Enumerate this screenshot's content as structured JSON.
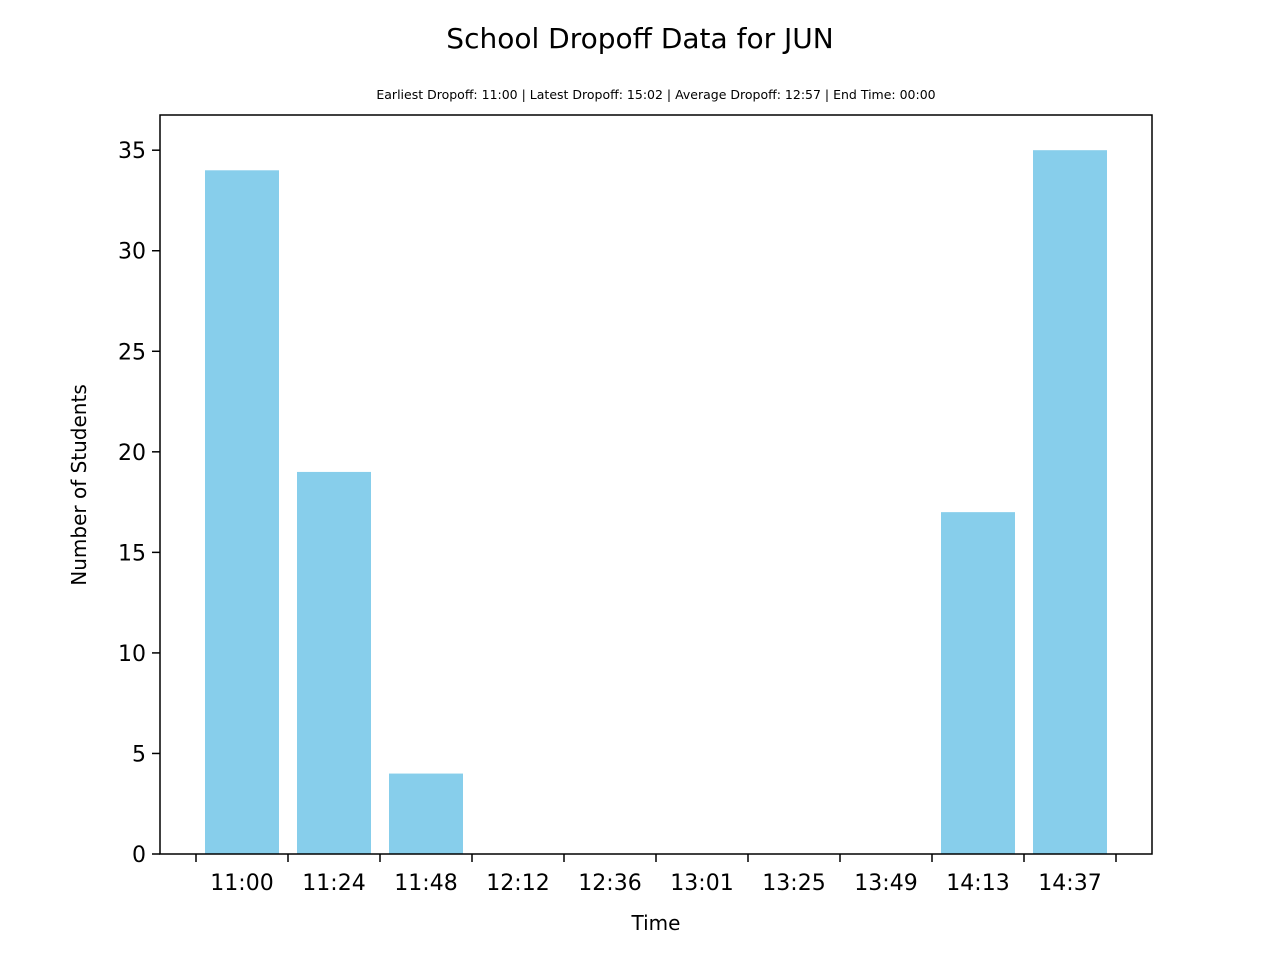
{
  "chart_data": {
    "type": "bar",
    "title": "School Dropoff Data for JUN",
    "subtitle": "Earliest Dropoff: 11:00 | Latest Dropoff: 15:02 | Average Dropoff: 12:57 | End Time: 00:00",
    "xlabel": "Time",
    "ylabel": "Number of Students",
    "categories": [
      "11:00",
      "11:24",
      "11:48",
      "12:12",
      "12:36",
      "13:01",
      "13:25",
      "13:49",
      "14:13",
      "14:37"
    ],
    "values": [
      34,
      19,
      4,
      0,
      0,
      0,
      0,
      0,
      17,
      35
    ],
    "ylim": [
      0,
      36.75
    ],
    "yticks": [
      0,
      5,
      10,
      15,
      20,
      25,
      30,
      35
    ],
    "grid": false,
    "legend": "none",
    "bar_color": "#87CEEB"
  }
}
